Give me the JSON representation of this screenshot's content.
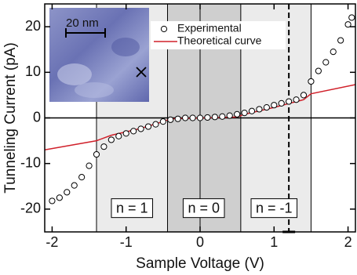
{
  "chart_data": {
    "type": "scatter",
    "xlabel": "Sample Voltage (V)",
    "ylabel": "Tunneling Current (pA)",
    "xlim": [
      -2.1,
      2.1
    ],
    "ylim": [
      -25,
      25
    ],
    "xticks": [
      -2,
      -1,
      0,
      1,
      2
    ],
    "yticks": [
      -20,
      -10,
      0,
      10,
      20
    ],
    "regions": [
      {
        "start": -1.4,
        "end": 1.5,
        "color": "#ebebeb"
      },
      {
        "start": -0.44,
        "end": 0.55,
        "color": "#cfcfcf"
      }
    ],
    "vlines": [
      -1.4,
      -0.44,
      0,
      0.55,
      1.5
    ],
    "dashed_vline": 1.2,
    "annotations": [
      {
        "text": "n = 1",
        "x": -0.92,
        "y": -20
      },
      {
        "text": "n = 0",
        "x": 0.05,
        "y": -20
      },
      {
        "text": "n = -1",
        "x": 1.0,
        "y": -20
      }
    ],
    "inset_label": "20 nm",
    "series": [
      {
        "name": "Experimental",
        "kind": "scatter",
        "color": "#000000",
        "x": [
          -2.0,
          -1.9,
          -1.8,
          -1.7,
          -1.6,
          -1.5,
          -1.4,
          -1.3,
          -1.2,
          -1.1,
          -1.0,
          -0.9,
          -0.8,
          -0.7,
          -0.6,
          -0.5,
          -0.4,
          -0.3,
          -0.2,
          -0.1,
          0,
          0.1,
          0.2,
          0.3,
          0.4,
          0.5,
          0.6,
          0.7,
          0.8,
          0.9,
          1.0,
          1.1,
          1.2,
          1.3,
          1.4,
          1.5,
          1.6,
          1.7,
          1.8,
          1.9,
          2.0,
          2.05
        ],
        "values": [
          -18.2,
          -17.5,
          -16.3,
          -14.8,
          -13,
          -10.5,
          -8,
          -6.3,
          -4.8,
          -4,
          -3.4,
          -2.9,
          -2.4,
          -1.9,
          -1.4,
          -0.8,
          -0.4,
          -0.2,
          0,
          0,
          0,
          0.1,
          0.2,
          0.3,
          0.5,
          0.8,
          1.1,
          1.5,
          1.9,
          2.3,
          2.8,
          3.2,
          3.6,
          4,
          5,
          8,
          10.3,
          12.2,
          14.5,
          17,
          20.5,
          22
        ]
      },
      {
        "name": "Theoretical curve",
        "kind": "line",
        "color": "#d0202a",
        "x": [
          -2.1,
          -1.4,
          -1.2,
          -0.8,
          -0.5,
          -0.4,
          0.5,
          0.6,
          1.0,
          1.4,
          1.5,
          2.1
        ],
        "values": [
          -7,
          -5,
          -3.8,
          -2.3,
          -0.8,
          -0.2,
          0.2,
          0.8,
          2.3,
          4,
          5.3,
          7.3
        ]
      }
    ]
  }
}
